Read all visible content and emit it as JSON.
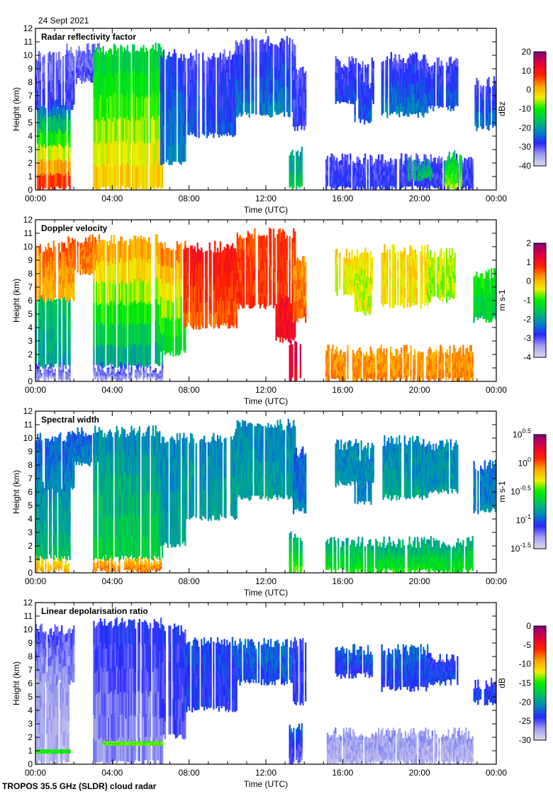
{
  "header": {
    "date": "24 Sept 2021"
  },
  "footer": {
    "instrument": "TROPOS 35.5 GHz (SLDR) cloud radar"
  },
  "colormap": [
    "#dcdcec",
    "#a0a0f0",
    "#2828ff",
    "#0088c0",
    "#00c060",
    "#00ee00",
    "#f0f000",
    "#ffa000",
    "#ff2000",
    "#e00040",
    "#800080"
  ],
  "chart_data": [
    {
      "type": "heatmap",
      "title": "Radar reflectivity factor",
      "xlabel": "Time (UTC)",
      "ylabel": "Height (km)",
      "xlim": [
        0,
        24
      ],
      "ylim": [
        0,
        12
      ],
      "xticks": [
        "00:00",
        "04:00",
        "08:00",
        "12:00",
        "16:00",
        "20:00",
        "00:00"
      ],
      "yticks": [
        "0",
        "1",
        "2",
        "3",
        "4",
        "5",
        "6",
        "7",
        "8",
        "9",
        "10",
        "11",
        "12"
      ],
      "colorbar": {
        "label": "dBz",
        "range": [
          -40,
          20
        ],
        "ticks": [
          "-40",
          "-30",
          "-20",
          "-10",
          "0",
          "10",
          "20"
        ],
        "scale": "linear"
      },
      "regions_columns": [
        "t_start_h",
        "t_end_h",
        "base_km",
        "top_km",
        "value_base",
        "value_top"
      ],
      "regions": [
        [
          0,
          1.8,
          0,
          6.5,
          10,
          -25
        ],
        [
          0,
          2,
          6,
          10,
          -28,
          -32
        ],
        [
          1.6,
          3.3,
          8,
          10.5,
          -30,
          -32
        ],
        [
          3.0,
          6.6,
          0,
          10.5,
          0,
          -15
        ],
        [
          6.5,
          7.8,
          2,
          10,
          -22,
          -28
        ],
        [
          7.7,
          10.5,
          4,
          10,
          -25,
          -30
        ],
        [
          10.4,
          13.5,
          5.5,
          11,
          -22,
          -30
        ],
        [
          13.2,
          13.9,
          0,
          2.8,
          -15,
          -20
        ],
        [
          13.4,
          14.1,
          4.5,
          9,
          -28,
          -30
        ],
        [
          15.6,
          17.6,
          6.5,
          9.5,
          -26,
          -30
        ],
        [
          16.6,
          17.5,
          5,
          8,
          -25,
          -28
        ],
        [
          18,
          20.4,
          5.5,
          9.8,
          -22,
          -30
        ],
        [
          20.4,
          22,
          6,
          9.5,
          -25,
          -30
        ],
        [
          22.8,
          24,
          4.5,
          8,
          -22,
          -30
        ],
        [
          15.1,
          22.8,
          0,
          2.3,
          -28,
          -30
        ],
        [
          19.4,
          20.6,
          0.8,
          2,
          -15,
          -20
        ],
        [
          21.3,
          22.2,
          0,
          2.5,
          -5,
          -15
        ]
      ]
    },
    {
      "type": "heatmap",
      "title": "Doppler velocity",
      "xlabel": "Time (UTC)",
      "ylabel": "Height (km)",
      "xlim": [
        0,
        24
      ],
      "ylim": [
        0,
        12
      ],
      "xticks": [
        "00:00",
        "04:00",
        "08:00",
        "12:00",
        "16:00",
        "20:00",
        "00:00"
      ],
      "yticks": [
        "0",
        "1",
        "2",
        "3",
        "4",
        "5",
        "6",
        "7",
        "8",
        "9",
        "10",
        "11",
        "12"
      ],
      "colorbar": {
        "label": "m s-1",
        "range": [
          -4,
          2
        ],
        "ticks": [
          "-4",
          "-3",
          "-2",
          "-1",
          "0",
          "1",
          "2"
        ],
        "scale": "linear"
      },
      "regions_columns": [
        "t_start_h",
        "t_end_h",
        "base_km",
        "top_km",
        "value_base",
        "value_top"
      ],
      "regions": [
        [
          0,
          1.8,
          1,
          6.5,
          -2,
          -1.5
        ],
        [
          0,
          1.8,
          0,
          1,
          -3.5,
          -3
        ],
        [
          0,
          2,
          6,
          10,
          0,
          0.5
        ],
        [
          1.6,
          3.3,
          8,
          10.5,
          0.3,
          0.5
        ],
        [
          3,
          6.6,
          1,
          10.5,
          -2,
          0.3
        ],
        [
          3,
          6.6,
          0,
          1,
          -3.5,
          -3
        ],
        [
          6.5,
          7.8,
          2,
          10,
          -1.5,
          0.5
        ],
        [
          7.7,
          10.5,
          4,
          10,
          0.5,
          1
        ],
        [
          10.4,
          13.5,
          5.5,
          11,
          0.8,
          0.6
        ],
        [
          12.5,
          13.5,
          3,
          6,
          1.2,
          1
        ],
        [
          13.2,
          13.9,
          0,
          2.8,
          1.2,
          1.5
        ],
        [
          13.4,
          14.1,
          4.5,
          9,
          0.5,
          0.2
        ],
        [
          15.6,
          17.6,
          6.5,
          9.5,
          -0.5,
          -0.2
        ],
        [
          16.6,
          17.5,
          5,
          8,
          -0.5,
          -0.5
        ],
        [
          18,
          20.4,
          5.5,
          9.8,
          -0.3,
          -0.2
        ],
        [
          20.4,
          22,
          6,
          9.5,
          -0.7,
          -0.5
        ],
        [
          22.8,
          24,
          4.5,
          8,
          -1.5,
          -1
        ],
        [
          15.1,
          22.8,
          0,
          2.3,
          0.3,
          0.2
        ]
      ]
    },
    {
      "type": "heatmap",
      "title": "Spectral width",
      "xlabel": "Time (UTC)",
      "ylabel": "Height (km)",
      "xlim": [
        0,
        24
      ],
      "ylim": [
        0,
        12
      ],
      "xticks": [
        "00:00",
        "04:00",
        "08:00",
        "12:00",
        "16:00",
        "20:00",
        "00:00"
      ],
      "yticks": [
        "0",
        "1",
        "2",
        "3",
        "4",
        "5",
        "6",
        "7",
        "8",
        "9",
        "10",
        "11",
        "12"
      ],
      "colorbar": {
        "label": "m s-1",
        "range": [
          -1.5,
          0.5
        ],
        "ticks": [
          "10^-1.5",
          "10^-1",
          "10^-0.5",
          "10^0",
          "10^0.5"
        ],
        "scale": "log10"
      },
      "regions_columns": [
        "t_start_h",
        "t_end_h",
        "base_km",
        "top_km",
        "log10_value_base",
        "log10_value_top"
      ],
      "regions": [
        [
          0,
          1.8,
          0,
          1,
          -0.1,
          -0.3
        ],
        [
          0,
          1.8,
          1,
          6.5,
          -0.7,
          -0.9
        ],
        [
          0,
          2,
          6,
          10,
          -0.9,
          -1
        ],
        [
          1.6,
          3.3,
          8,
          10.5,
          -0.9,
          -1
        ],
        [
          3,
          6.6,
          0,
          1,
          0,
          -0.2
        ],
        [
          3,
          6.6,
          1,
          10.5,
          -0.6,
          -0.9
        ],
        [
          6.5,
          7.8,
          2,
          10,
          -0.8,
          -0.9
        ],
        [
          7.7,
          10.5,
          4,
          10,
          -0.8,
          -0.9
        ],
        [
          10.4,
          13.5,
          5.5,
          11,
          -0.8,
          -0.9
        ],
        [
          13.2,
          13.9,
          0,
          2.8,
          -0.4,
          -0.8
        ],
        [
          13.4,
          14.1,
          4.5,
          9,
          -0.9,
          -1
        ],
        [
          15.6,
          17.6,
          6.5,
          9.5,
          -0.85,
          -0.9
        ],
        [
          16.6,
          17.5,
          5,
          8,
          -0.9,
          -0.9
        ],
        [
          18,
          20.4,
          5.5,
          9.8,
          -0.8,
          -0.9
        ],
        [
          20.4,
          22,
          6,
          9.5,
          -0.85,
          -0.9
        ],
        [
          22.8,
          24,
          4.5,
          8,
          -0.9,
          -0.95
        ],
        [
          15.1,
          22.8,
          0,
          2.3,
          -0.5,
          -0.8
        ]
      ]
    },
    {
      "type": "heatmap",
      "title": "Linear depolarisation ratio",
      "xlabel": "Time (UTC)",
      "ylabel": "Height (km)",
      "xlim": [
        0,
        24
      ],
      "ylim": [
        0,
        12
      ],
      "xticks": [
        "00:00",
        "04:00",
        "08:00",
        "12:00",
        "16:00",
        "20:00",
        "00:00"
      ],
      "yticks": [
        "0",
        "1",
        "2",
        "3",
        "4",
        "5",
        "6",
        "7",
        "8",
        "9",
        "10",
        "11",
        "12"
      ],
      "colorbar": {
        "label": "dB",
        "range": [
          -30,
          0
        ],
        "ticks": [
          "-30",
          "-25",
          "-20",
          "-15",
          "-10",
          "-5",
          "0"
        ],
        "scale": "linear"
      },
      "regions_columns": [
        "t_start_h",
        "t_end_h",
        "base_km",
        "top_km",
        "value_base",
        "value_top"
      ],
      "regions": [
        [
          0,
          1.8,
          0,
          6.5,
          -28,
          -27
        ],
        [
          0,
          2,
          6,
          10,
          -27,
          -25
        ],
        [
          3,
          6.6,
          0,
          10.5,
          -27,
          -24
        ],
        [
          6.5,
          7.8,
          2,
          10,
          -25,
          -24
        ],
        [
          7.7,
          10.5,
          4,
          9,
          -24,
          -23
        ],
        [
          10.4,
          13.5,
          6,
          9,
          -23,
          -22
        ],
        [
          13.2,
          13.9,
          0,
          2.8,
          -26,
          -22
        ],
        [
          13.4,
          14.1,
          4.5,
          9,
          -24,
          -24
        ],
        [
          15.6,
          17.6,
          6.5,
          8.5,
          -24,
          -22
        ],
        [
          18,
          20.4,
          5.5,
          8.5,
          -24,
          -22
        ],
        [
          20.4,
          22,
          6,
          8,
          -23,
          -24
        ],
        [
          22.8,
          24,
          4.5,
          6,
          -23,
          -24
        ],
        [
          15.1,
          22.8,
          0,
          2.3,
          -28,
          -27
        ],
        [
          0,
          1.8,
          0.8,
          1.1,
          -15,
          -15
        ],
        [
          3.5,
          6.6,
          1.4,
          1.7,
          -14,
          -14
        ]
      ]
    }
  ]
}
